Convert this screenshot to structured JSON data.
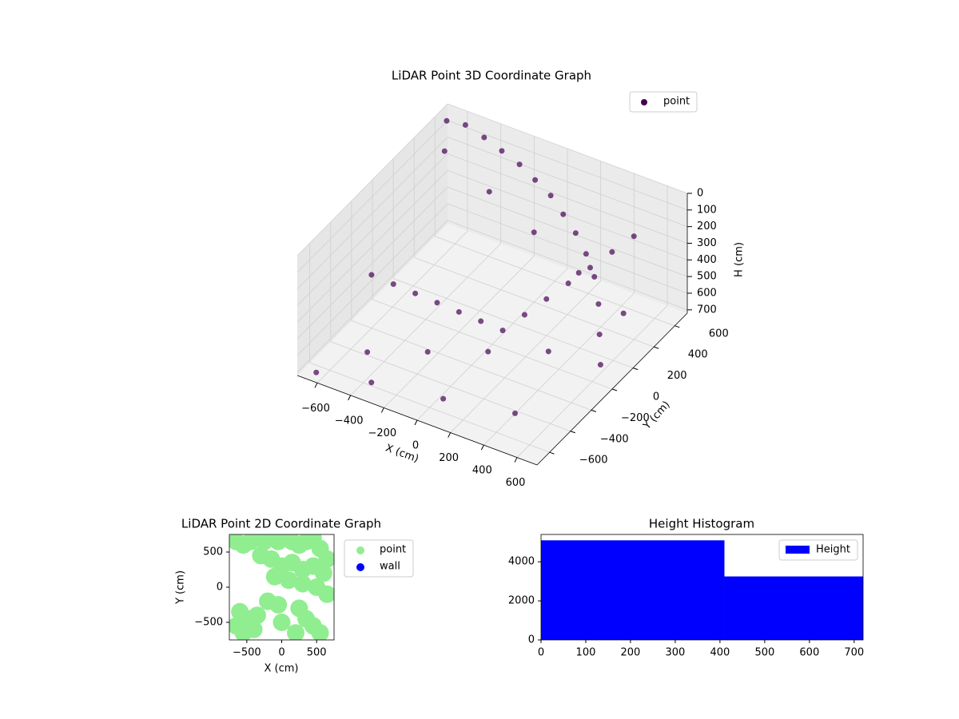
{
  "chart_data": [
    {
      "type": "scatter3d",
      "title": "LiDAR Point 3D Coordinate Graph",
      "xlabel": "X (cm)",
      "ylabel": "Y (cm)",
      "zlabel": "H (cm)",
      "xlim": [
        -720,
        720
      ],
      "ylim": [
        -720,
        720
      ],
      "zlim": [
        720,
        0
      ],
      "xticks": [
        {
          "value": -600,
          "label": "−600"
        },
        {
          "value": -400,
          "label": "−400"
        },
        {
          "value": -200,
          "label": "−200"
        },
        0,
        200,
        400,
        600
      ],
      "yticks": [
        {
          "value": -600,
          "label": "−600"
        },
        {
          "value": -400,
          "label": "−400"
        },
        {
          "value": -200,
          "label": "−200"
        },
        0,
        200,
        400,
        600
      ],
      "zticks": [
        0,
        100,
        200,
        300,
        400,
        500,
        600,
        700
      ],
      "grid": true,
      "legend": "upper right",
      "series": [
        {
          "name": "point",
          "color": "#440154",
          "x": [
            -650,
            -550,
            -450,
            -350,
            -250,
            -150,
            -50,
            50,
            150,
            250,
            350,
            450,
            550,
            650,
            -600,
            -500,
            -400,
            -300,
            -200,
            -100,
            0,
            100,
            200,
            300,
            400,
            500,
            600,
            -600,
            -300,
            0,
            300,
            600,
            -500,
            -200,
            100,
            400,
            -650,
            -350,
            50,
            450
          ],
          "y": [
            600,
            620,
            640,
            650,
            660,
            650,
            640,
            600,
            560,
            500,
            420,
            300,
            150,
            0,
            -200,
            -150,
            -100,
            -50,
            0,
            50,
            100,
            150,
            200,
            250,
            300,
            350,
            400,
            500,
            450,
            400,
            350,
            300,
            -400,
            -300,
            -200,
            -100,
            -650,
            -600,
            -550,
            -500
          ],
          "h": [
            0,
            0,
            50,
            100,
            150,
            200,
            250,
            300,
            350,
            400,
            450,
            500,
            550,
            600,
            400,
            450,
            500,
            550,
            600,
            650,
            700,
            600,
            500,
            400,
            300,
            200,
            100,
            100,
            200,
            300,
            400,
            500,
            700,
            650,
            600,
            550,
            720,
            700,
            680,
            650
          ]
        }
      ]
    },
    {
      "type": "scatter",
      "title": "LiDAR Point 2D Coordinate Graph",
      "xlabel": "X (cm)",
      "ylabel": "Y (cm)",
      "xlim": [
        -750,
        750
      ],
      "ylim": [
        -750,
        750
      ],
      "xticks": [
        {
          "value": -500,
          "label": "−500"
        },
        0,
        500
      ],
      "yticks": [
        {
          "value": -500,
          "label": "−500"
        },
        0,
        500
      ],
      "legend": "outside right",
      "series": [
        {
          "name": "point",
          "color": "#90ee90",
          "x": [
            -650,
            -550,
            -450,
            -350,
            -250,
            -150,
            -50,
            50,
            150,
            250,
            350,
            450,
            550,
            650,
            -300,
            -150,
            0,
            150,
            300,
            450,
            600,
            -100,
            100,
            300,
            500,
            650,
            -600,
            -450,
            -650,
            -550,
            -400,
            -200,
            -50,
            0,
            200,
            350,
            450,
            550,
            -350,
            250
          ],
          "y": [
            650,
            600,
            650,
            700,
            650,
            700,
            650,
            700,
            650,
            600,
            650,
            700,
            550,
            400,
            450,
            400,
            300,
            350,
            250,
            300,
            200,
            150,
            100,
            50,
            0,
            -100,
            -350,
            -450,
            -550,
            -650,
            -600,
            -200,
            -250,
            -500,
            -650,
            -450,
            -550,
            -650,
            -400,
            -300
          ]
        },
        {
          "name": "wall",
          "color": "#0000ff",
          "x": [],
          "y": []
        }
      ]
    },
    {
      "type": "histogram",
      "title": "Height Histogram",
      "bins": [
        0,
        410,
        720
      ],
      "values": [
        5100,
        3250
      ],
      "series_name": "Height",
      "color": "#0000ff",
      "legend": "upper right",
      "xlim": [
        0,
        720
      ],
      "ylim": [
        0,
        5400
      ],
      "xticks": [
        0,
        100,
        200,
        300,
        400,
        500,
        600,
        700
      ],
      "yticks": [
        0,
        2000,
        4000
      ]
    }
  ]
}
